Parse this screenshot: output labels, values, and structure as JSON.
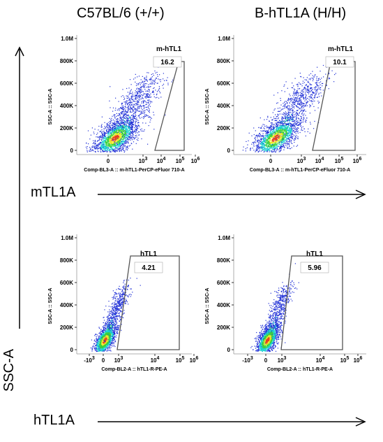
{
  "column_titles": [
    "C57BL/6 (+/+)",
    "B-hTL1A (H/H)"
  ],
  "row_labels": [
    "mTL1A",
    "hTL1A"
  ],
  "y_axis_label": "SSC-A",
  "chart_data": [
    {
      "type": "scatter",
      "id": "plot-m-wt",
      "gate_name": "m-hTL1",
      "gate_percent": "16.2",
      "ylabel": "SSC-A :: SSC-A",
      "xlabel": "Comp-BL3-A :: m-hTL1-PerCP-eFluor   710-A",
      "yticks": [
        "0",
        "200K",
        "400K",
        "600K",
        "800K",
        "1.0M"
      ],
      "xticks": [
        "0",
        "10^3",
        "10^4",
        "10^5",
        "10^6"
      ],
      "ylim": [
        0,
        1000000
      ]
    },
    {
      "type": "scatter",
      "id": "plot-m-ko",
      "gate_name": "m-hTL1",
      "gate_percent": "10.1",
      "ylabel": "SSC-A :: SSC-A",
      "xlabel": "Comp-BL3-A :: m-hTL1-PerCP-eFluor   710-A",
      "yticks": [
        "0",
        "200K",
        "400K",
        "600K",
        "800K",
        "1.0M"
      ],
      "xticks": [
        "0",
        "10^3",
        "10^4",
        "10^5",
        "10^6"
      ],
      "ylim": [
        0,
        1000000
      ]
    },
    {
      "type": "scatter",
      "id": "plot-h-wt",
      "gate_name": "hTL1",
      "gate_percent": "4.21",
      "ylabel": "SSC-A :: SSC-A",
      "xlabel": "Comp-BL2-A :: hTL1-R-PE-A",
      "yticks": [
        "0",
        "200K",
        "400K",
        "600K",
        "800K",
        "1.0M"
      ],
      "xticks": [
        "-10^3",
        "0",
        "10^3",
        "10^4",
        "10^5",
        "10^6"
      ],
      "ylim": [
        0,
        1000000
      ]
    },
    {
      "type": "scatter",
      "id": "plot-h-ko",
      "gate_name": "hTL1",
      "gate_percent": "5.96",
      "ylabel": "SSC-A :: SSC-A",
      "xlabel": "Comp-BL2-A :: hTL1-R-PE-A",
      "yticks": [
        "0",
        "200K",
        "400K",
        "600K",
        "800K",
        "1.0M"
      ],
      "xticks": [
        "-10^3",
        "0",
        "10^3",
        "10^4",
        "10^5",
        "10^6"
      ],
      "ylim": [
        0,
        1000000
      ]
    }
  ],
  "colors": {
    "dots_outer": "#1f2fd6",
    "dots_mid": "#17d1d0",
    "dots_core": "#3ad23a",
    "dots_hot": "#f0e82a",
    "dots_peak": "#e8401c",
    "axis": "#000000"
  }
}
